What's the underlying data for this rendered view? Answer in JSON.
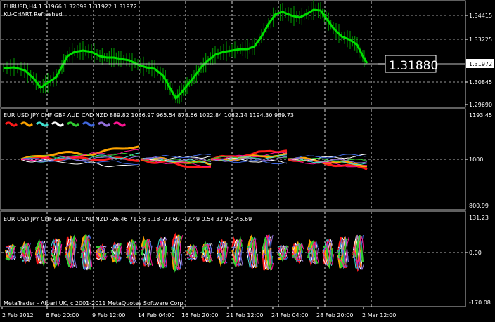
{
  "main": {
    "symbol_line": "EURUSD,H4  1.31966  1.32099  1.31922  1.31972",
    "status": "KU-CHART Refreshed..",
    "price_ticks": [
      "1.34415",
      "1.33225",
      "1.31972",
      "1.30845",
      "1.29690"
    ],
    "price_box": "1.31880",
    "current_label": "1.31972"
  },
  "panel2": {
    "header_text": "EUR USD  JPY   CHF  GBP  AUD  CAD  NZD  889.82  1036.97  965.54  878.66  1022.84  1082.14  1194.30  989.73",
    "ticks": [
      "1193.45",
      "1000",
      "800.99"
    ]
  },
  "panel3": {
    "header_text": "EUR USD  JPY   CHF  GBP  AUD  CAD  NZD  -26.46  71.58  3.18  -23.60  -12.49  0.54  32.93  -45.69",
    "ticks": [
      "131.23",
      "0.00",
      "-170.08"
    ]
  },
  "footer": {
    "copyright": "MetaTrader - Alpari UK, c 2001-2011 MetaQuotes Software Corp."
  },
  "time_axis": [
    "2 Feb 2012",
    "6 Feb 20:00",
    "9 Feb 12:00",
    "14 Feb 04:00",
    "16 Feb 20:00",
    "21 Feb 12:00",
    "24 Feb 04:00",
    "28 Feb 20:00",
    "2 Mar 12:00"
  ],
  "currencies": [
    {
      "name": "EUR",
      "color": "#ff1a1a"
    },
    {
      "name": "USD",
      "color": "#ffa500"
    },
    {
      "name": "JPY",
      "color": "#40e0d0"
    },
    {
      "name": "CHF",
      "color": "#ffffff"
    },
    {
      "name": "GBP",
      "color": "#32cd32"
    },
    {
      "name": "AUD",
      "color": "#4169e1"
    },
    {
      "name": "CAD",
      "color": "#9370db"
    },
    {
      "name": "NZD",
      "color": "#ff1493"
    }
  ],
  "colors": {
    "price_line": "#00e000",
    "bars": "#00a000",
    "grid": "#ffffff",
    "panel_border": "#c0c0c0"
  }
}
